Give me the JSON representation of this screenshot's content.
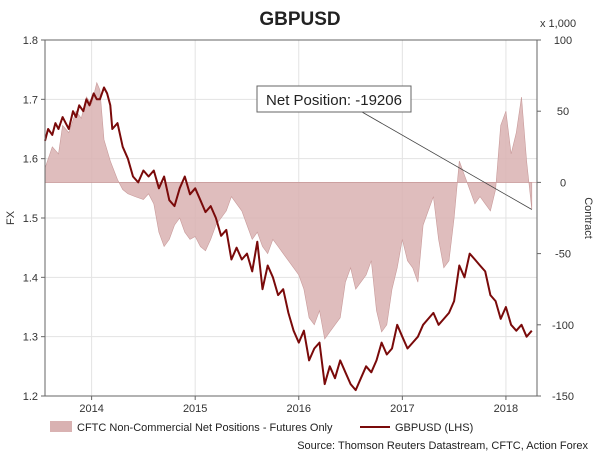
{
  "chart_data": {
    "type": "line",
    "title": "GBPUSD",
    "ylabel_left": "FX",
    "ylabel_right": "Contract",
    "right_unit": "x 1,000",
    "ylim_left": [
      1.2,
      1.8
    ],
    "ylim_right": [
      -150,
      100
    ],
    "xlim": [
      2013.55,
      2018.3
    ],
    "left_ticks": [
      "1.8",
      "1.7",
      "1.6",
      "1.5",
      "1.4",
      "1.3",
      "1.2"
    ],
    "right_ticks": [
      "100",
      "50",
      "0",
      "-50",
      "-100",
      "-150"
    ],
    "x_ticks": [
      {
        "label": "2014",
        "value": 2014.0
      },
      {
        "label": "2015",
        "value": 2015.0
      },
      {
        "label": "2016",
        "value": 2016.0
      },
      {
        "label": "2017",
        "value": 2017.0
      },
      {
        "label": "2018",
        "value": 2018.0
      }
    ],
    "annotation": "Net Position: -19206",
    "annotation_point": {
      "x": 2018.25,
      "y": -19
    },
    "legend": [
      {
        "name": "CFTC Non-Commercial Net Positions - Futures Only",
        "kind": "area",
        "color": "#d9b2b2"
      },
      {
        "name": "GBPUSD (LHS)",
        "kind": "line",
        "color": "#7a0a0a"
      }
    ],
    "source": "Source: Thomson Reuters Datastream, CFTC, Action Forex",
    "series": [
      {
        "name": "CFTC Non-Commercial Net Positions - Futures Only",
        "axis": "right",
        "x": [
          2013.55,
          2013.62,
          2013.68,
          2013.72,
          2013.78,
          2013.85,
          2013.9,
          2013.95,
          2014.0,
          2014.05,
          2014.08,
          2014.12,
          2014.18,
          2014.25,
          2014.3,
          2014.35,
          2014.42,
          2014.5,
          2014.55,
          2014.6,
          2014.65,
          2014.7,
          2014.75,
          2014.8,
          2014.85,
          2014.9,
          2014.95,
          2015.0,
          2015.05,
          2015.1,
          2015.15,
          2015.2,
          2015.25,
          2015.3,
          2015.35,
          2015.4,
          2015.45,
          2015.5,
          2015.55,
          2015.6,
          2015.65,
          2015.7,
          2015.75,
          2015.8,
          2015.85,
          2015.9,
          2015.95,
          2016.0,
          2016.05,
          2016.1,
          2016.15,
          2016.2,
          2016.25,
          2016.3,
          2016.35,
          2016.4,
          2016.45,
          2016.5,
          2016.55,
          2016.6,
          2016.65,
          2016.7,
          2016.75,
          2016.8,
          2016.85,
          2016.9,
          2016.95,
          2017.0,
          2017.05,
          2017.1,
          2017.15,
          2017.2,
          2017.25,
          2017.3,
          2017.35,
          2017.4,
          2017.45,
          2017.5,
          2017.55,
          2017.6,
          2017.65,
          2017.7,
          2017.75,
          2017.8,
          2017.85,
          2017.9,
          2017.95,
          2018.0,
          2018.05,
          2018.1,
          2018.15,
          2018.2,
          2018.25
        ],
        "values": [
          10,
          25,
          20,
          40,
          35,
          50,
          45,
          60,
          55,
          70,
          65,
          30,
          15,
          2,
          -5,
          -8,
          -10,
          -12,
          -8,
          -15,
          -35,
          -45,
          -40,
          -30,
          -25,
          -35,
          -40,
          -38,
          -45,
          -48,
          -40,
          -30,
          -25,
          -20,
          -10,
          -15,
          -20,
          -30,
          -40,
          -35,
          -45,
          -50,
          -40,
          -45,
          -50,
          -55,
          -60,
          -65,
          -75,
          -95,
          -100,
          -90,
          -110,
          -105,
          -100,
          -95,
          -70,
          -60,
          -75,
          -70,
          -65,
          -55,
          -90,
          -105,
          -100,
          -75,
          -60,
          -40,
          -55,
          -60,
          -70,
          -30,
          -20,
          -10,
          -40,
          -60,
          -55,
          -25,
          15,
          5,
          -5,
          -15,
          -10,
          -15,
          -20,
          -5,
          40,
          50,
          20,
          35,
          60,
          15,
          -19
        ]
      },
      {
        "name": "GBPUSD (LHS)",
        "axis": "left",
        "x": [
          2013.55,
          2013.58,
          2013.62,
          2013.65,
          2013.68,
          2013.72,
          2013.75,
          2013.78,
          2013.82,
          2013.85,
          2013.88,
          2013.92,
          2013.95,
          2013.98,
          2014.02,
          2014.05,
          2014.08,
          2014.12,
          2014.15,
          2014.18,
          2014.2,
          2014.25,
          2014.3,
          2014.35,
          2014.4,
          2014.45,
          2014.5,
          2014.55,
          2014.6,
          2014.65,
          2014.7,
          2014.75,
          2014.8,
          2014.85,
          2014.9,
          2014.95,
          2015.0,
          2015.05,
          2015.1,
          2015.15,
          2015.2,
          2015.25,
          2015.3,
          2015.35,
          2015.4,
          2015.45,
          2015.5,
          2015.55,
          2015.6,
          2015.65,
          2015.7,
          2015.75,
          2015.8,
          2015.85,
          2015.9,
          2015.95,
          2016.0,
          2016.05,
          2016.1,
          2016.15,
          2016.2,
          2016.25,
          2016.3,
          2016.35,
          2016.4,
          2016.45,
          2016.5,
          2016.55,
          2016.6,
          2016.65,
          2016.7,
          2016.75,
          2016.8,
          2016.85,
          2016.9,
          2016.95,
          2017.0,
          2017.05,
          2017.1,
          2017.15,
          2017.2,
          2017.25,
          2017.3,
          2017.35,
          2017.4,
          2017.45,
          2017.5,
          2017.55,
          2017.6,
          2017.65,
          2017.7,
          2017.75,
          2017.8,
          2017.85,
          2017.9,
          2017.95,
          2018.0,
          2018.05,
          2018.1,
          2018.15,
          2018.2,
          2018.25
        ],
        "values": [
          1.63,
          1.65,
          1.64,
          1.66,
          1.65,
          1.67,
          1.66,
          1.65,
          1.68,
          1.67,
          1.69,
          1.68,
          1.7,
          1.69,
          1.71,
          1.7,
          1.7,
          1.72,
          1.71,
          1.69,
          1.65,
          1.66,
          1.62,
          1.6,
          1.57,
          1.56,
          1.58,
          1.57,
          1.58,
          1.55,
          1.57,
          1.53,
          1.52,
          1.55,
          1.57,
          1.54,
          1.55,
          1.53,
          1.51,
          1.52,
          1.5,
          1.47,
          1.48,
          1.43,
          1.45,
          1.43,
          1.44,
          1.41,
          1.46,
          1.38,
          1.42,
          1.4,
          1.37,
          1.38,
          1.34,
          1.31,
          1.29,
          1.31,
          1.26,
          1.28,
          1.29,
          1.22,
          1.25,
          1.23,
          1.26,
          1.24,
          1.22,
          1.21,
          1.23,
          1.25,
          1.24,
          1.26,
          1.29,
          1.27,
          1.28,
          1.32,
          1.3,
          1.28,
          1.29,
          1.3,
          1.32,
          1.33,
          1.34,
          1.32,
          1.33,
          1.34,
          1.36,
          1.42,
          1.4,
          1.44,
          1.43,
          1.42,
          1.41,
          1.37,
          1.36,
          1.33,
          1.35,
          1.32,
          1.31,
          1.32,
          1.3,
          1.31
        ]
      }
    ]
  }
}
